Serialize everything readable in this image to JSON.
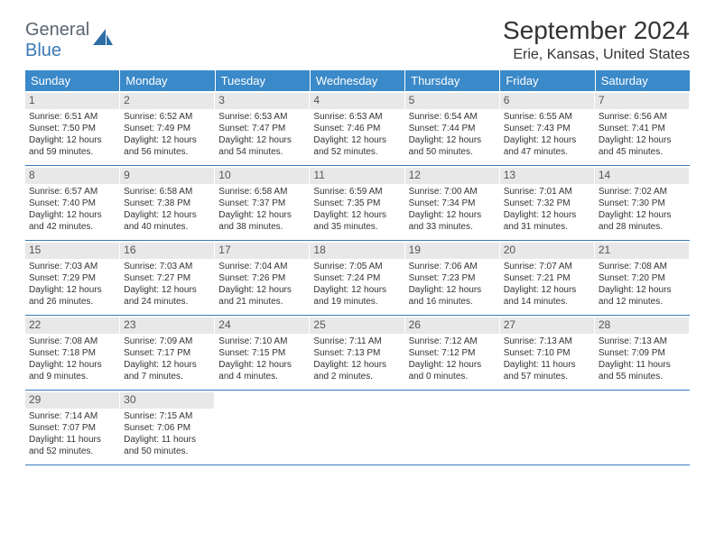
{
  "logo": {
    "part1": "General",
    "part2": "Blue"
  },
  "title": "September 2024",
  "subtitle": "Erie, Kansas, United States",
  "colors": {
    "header_bg": "#3a89c9",
    "header_text": "#ffffff",
    "daynum_bg": "#e8e8e8",
    "border": "#3a7ab8",
    "logo_gray": "#5a6570",
    "logo_blue": "#3a7ab8"
  },
  "dayheaders": [
    "Sunday",
    "Monday",
    "Tuesday",
    "Wednesday",
    "Thursday",
    "Friday",
    "Saturday"
  ],
  "weeks": [
    [
      {
        "n": "1",
        "sr": "6:51 AM",
        "ss": "7:50 PM",
        "dl": "12 hours and 59 minutes."
      },
      {
        "n": "2",
        "sr": "6:52 AM",
        "ss": "7:49 PM",
        "dl": "12 hours and 56 minutes."
      },
      {
        "n": "3",
        "sr": "6:53 AM",
        "ss": "7:47 PM",
        "dl": "12 hours and 54 minutes."
      },
      {
        "n": "4",
        "sr": "6:53 AM",
        "ss": "7:46 PM",
        "dl": "12 hours and 52 minutes."
      },
      {
        "n": "5",
        "sr": "6:54 AM",
        "ss": "7:44 PM",
        "dl": "12 hours and 50 minutes."
      },
      {
        "n": "6",
        "sr": "6:55 AM",
        "ss": "7:43 PM",
        "dl": "12 hours and 47 minutes."
      },
      {
        "n": "7",
        "sr": "6:56 AM",
        "ss": "7:41 PM",
        "dl": "12 hours and 45 minutes."
      }
    ],
    [
      {
        "n": "8",
        "sr": "6:57 AM",
        "ss": "7:40 PM",
        "dl": "12 hours and 42 minutes."
      },
      {
        "n": "9",
        "sr": "6:58 AM",
        "ss": "7:38 PM",
        "dl": "12 hours and 40 minutes."
      },
      {
        "n": "10",
        "sr": "6:58 AM",
        "ss": "7:37 PM",
        "dl": "12 hours and 38 minutes."
      },
      {
        "n": "11",
        "sr": "6:59 AM",
        "ss": "7:35 PM",
        "dl": "12 hours and 35 minutes."
      },
      {
        "n": "12",
        "sr": "7:00 AM",
        "ss": "7:34 PM",
        "dl": "12 hours and 33 minutes."
      },
      {
        "n": "13",
        "sr": "7:01 AM",
        "ss": "7:32 PM",
        "dl": "12 hours and 31 minutes."
      },
      {
        "n": "14",
        "sr": "7:02 AM",
        "ss": "7:30 PM",
        "dl": "12 hours and 28 minutes."
      }
    ],
    [
      {
        "n": "15",
        "sr": "7:03 AM",
        "ss": "7:29 PM",
        "dl": "12 hours and 26 minutes."
      },
      {
        "n": "16",
        "sr": "7:03 AM",
        "ss": "7:27 PM",
        "dl": "12 hours and 24 minutes."
      },
      {
        "n": "17",
        "sr": "7:04 AM",
        "ss": "7:26 PM",
        "dl": "12 hours and 21 minutes."
      },
      {
        "n": "18",
        "sr": "7:05 AM",
        "ss": "7:24 PM",
        "dl": "12 hours and 19 minutes."
      },
      {
        "n": "19",
        "sr": "7:06 AM",
        "ss": "7:23 PM",
        "dl": "12 hours and 16 minutes."
      },
      {
        "n": "20",
        "sr": "7:07 AM",
        "ss": "7:21 PM",
        "dl": "12 hours and 14 minutes."
      },
      {
        "n": "21",
        "sr": "7:08 AM",
        "ss": "7:20 PM",
        "dl": "12 hours and 12 minutes."
      }
    ],
    [
      {
        "n": "22",
        "sr": "7:08 AM",
        "ss": "7:18 PM",
        "dl": "12 hours and 9 minutes."
      },
      {
        "n": "23",
        "sr": "7:09 AM",
        "ss": "7:17 PM",
        "dl": "12 hours and 7 minutes."
      },
      {
        "n": "24",
        "sr": "7:10 AM",
        "ss": "7:15 PM",
        "dl": "12 hours and 4 minutes."
      },
      {
        "n": "25",
        "sr": "7:11 AM",
        "ss": "7:13 PM",
        "dl": "12 hours and 2 minutes."
      },
      {
        "n": "26",
        "sr": "7:12 AM",
        "ss": "7:12 PM",
        "dl": "12 hours and 0 minutes."
      },
      {
        "n": "27",
        "sr": "7:13 AM",
        "ss": "7:10 PM",
        "dl": "11 hours and 57 minutes."
      },
      {
        "n": "28",
        "sr": "7:13 AM",
        "ss": "7:09 PM",
        "dl": "11 hours and 55 minutes."
      }
    ],
    [
      {
        "n": "29",
        "sr": "7:14 AM",
        "ss": "7:07 PM",
        "dl": "11 hours and 52 minutes."
      },
      {
        "n": "30",
        "sr": "7:15 AM",
        "ss": "7:06 PM",
        "dl": "11 hours and 50 minutes."
      },
      null,
      null,
      null,
      null,
      null
    ]
  ],
  "labels": {
    "sunrise": "Sunrise:",
    "sunset": "Sunset:",
    "daylight": "Daylight:"
  }
}
